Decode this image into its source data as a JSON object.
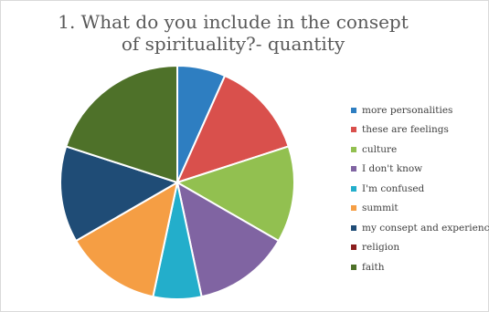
{
  "chart_data": {
    "type": "pie",
    "title": "1. What do you include in the consept of spirituality?- quantity",
    "categories": [
      "more personalities",
      "these are feelings",
      "culture",
      "I don't know",
      "I'm confused",
      "summit",
      "my consept and experience",
      "religion",
      "faith"
    ],
    "values": [
      1,
      2,
      2,
      2,
      1,
      2,
      2,
      0,
      3
    ],
    "colors": [
      "#2E7EC1",
      "#D9504C",
      "#92C050",
      "#8064A2",
      "#23AECB",
      "#F59E44",
      "#1F4C76",
      "#8B1E1E",
      "#4E7129"
    ],
    "legend_position": "right"
  }
}
